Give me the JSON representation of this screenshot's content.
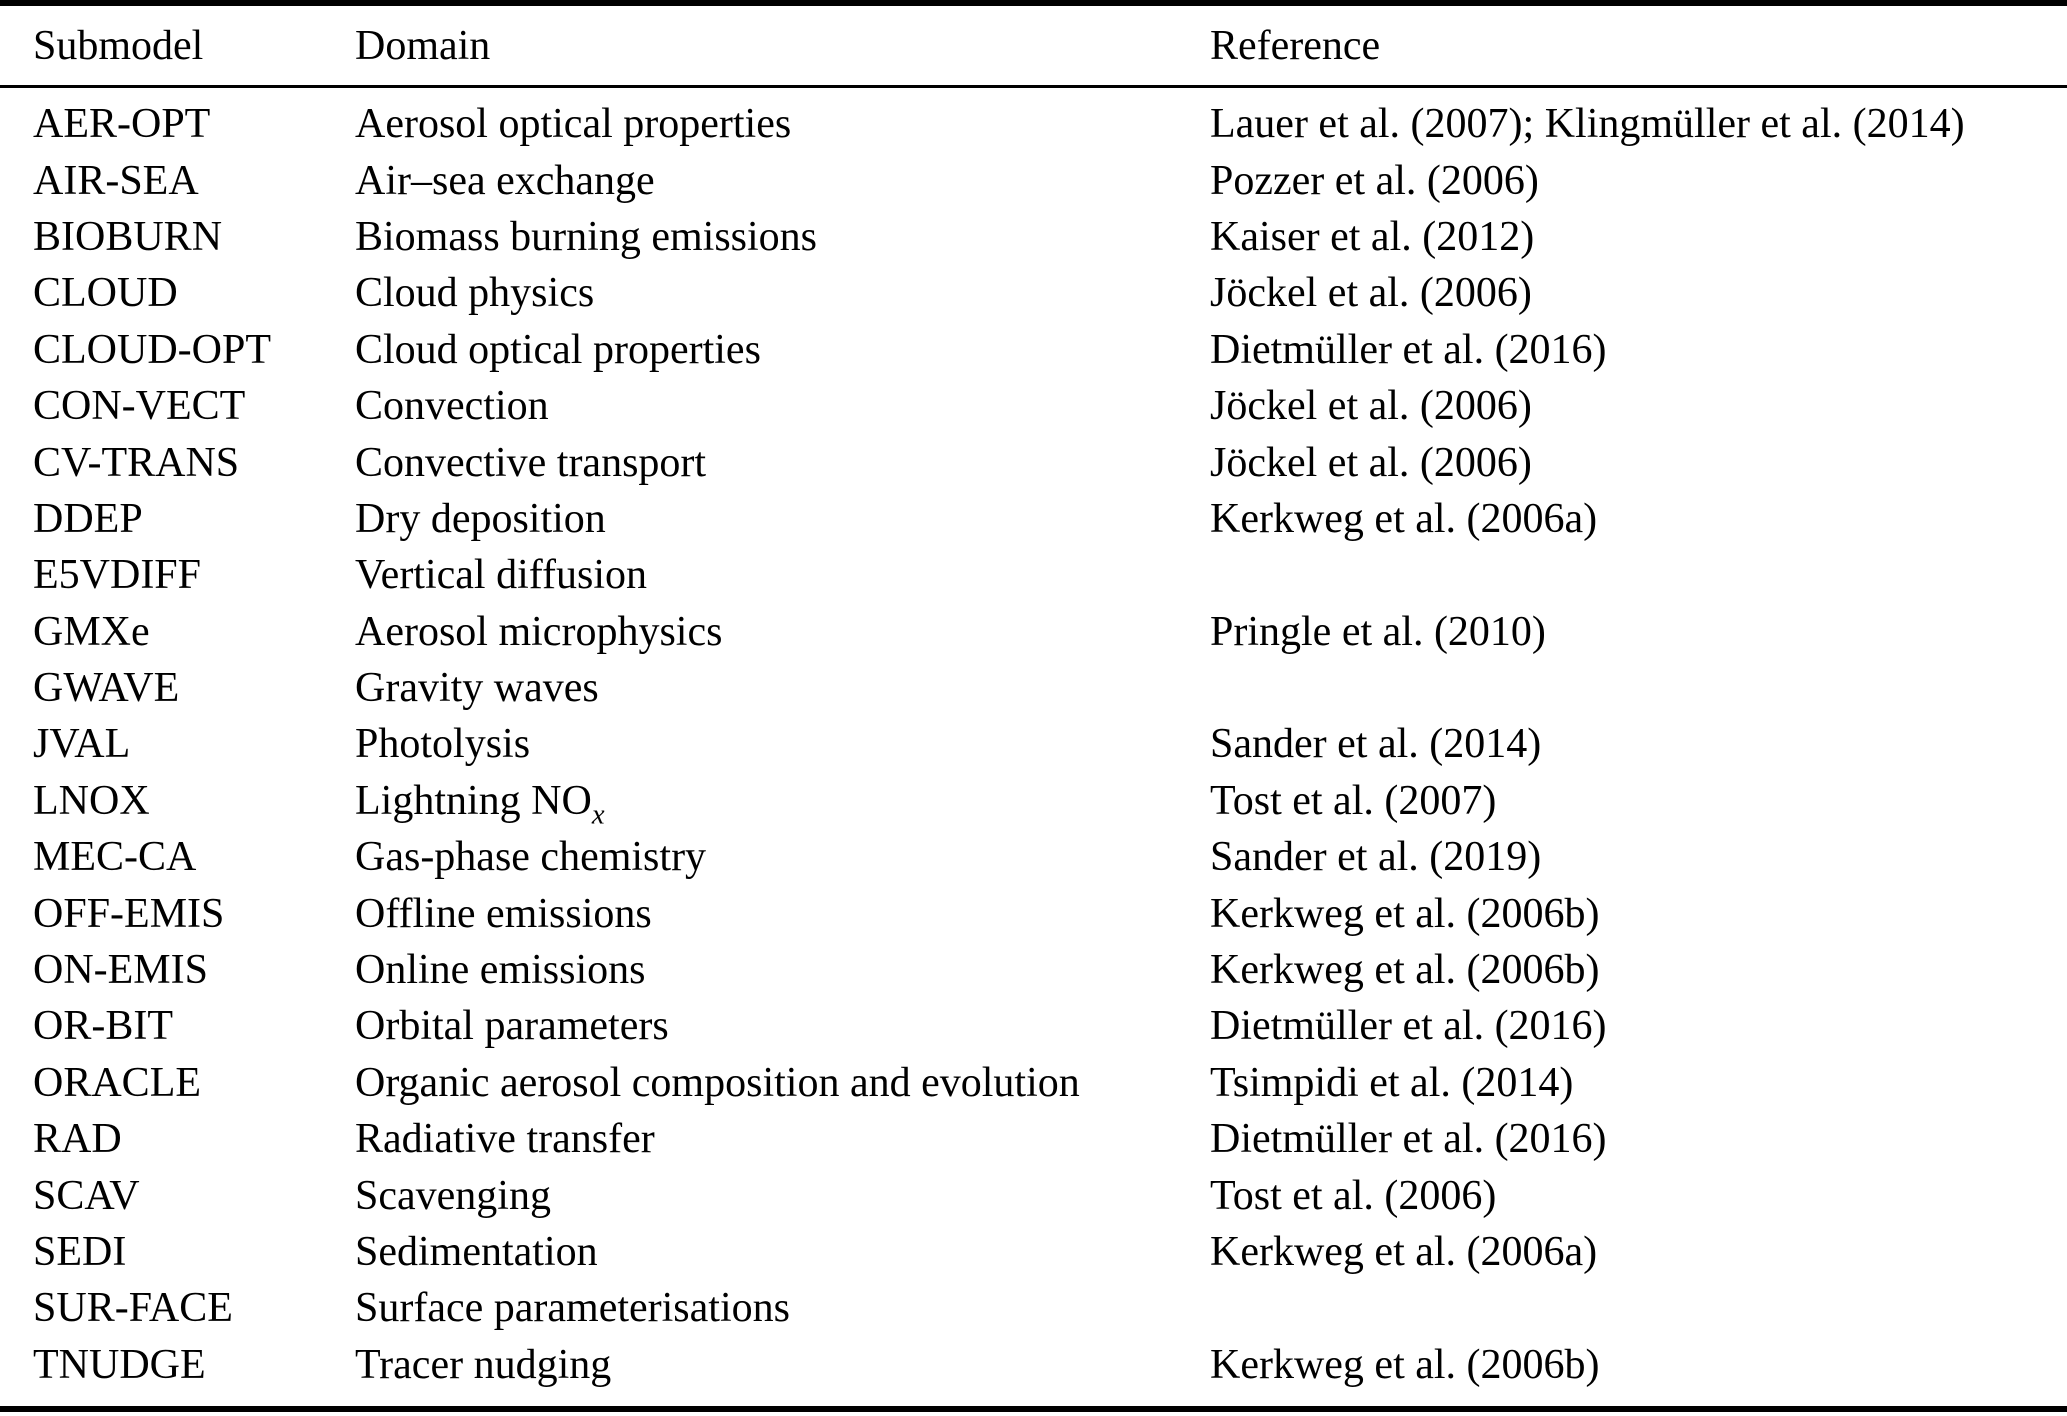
{
  "table": {
    "columns": [
      "Submodel",
      "Domain",
      "Reference"
    ],
    "rows": [
      {
        "submodel": "AER-OPT",
        "domain": "Aerosol optical properties",
        "reference": "Lauer et al. (2007); Klingmüller et al. (2014)"
      },
      {
        "submodel": "AIR-SEA",
        "domain": "Air–sea exchange",
        "reference": "Pozzer et al. (2006)"
      },
      {
        "submodel": "BIOBURN",
        "domain": "Biomass burning emissions",
        "reference": "Kaiser et al. (2012)"
      },
      {
        "submodel": "CLOUD",
        "domain": "Cloud physics",
        "reference": "Jöckel et al. (2006)"
      },
      {
        "submodel": "CLOUD-OPT",
        "domain": "Cloud optical properties",
        "reference": "Dietmüller et al. (2016)"
      },
      {
        "submodel": "CON-VECT",
        "domain": "Convection",
        "reference": "Jöckel et al. (2006)"
      },
      {
        "submodel": "CV-TRANS",
        "domain": "Convective transport",
        "reference": "Jöckel et al. (2006)"
      },
      {
        "submodel": "DDEP",
        "domain": "Dry deposition",
        "reference": "Kerkweg et al. (2006a)"
      },
      {
        "submodel": "E5VDIFF",
        "domain": "Vertical diffusion",
        "reference": ""
      },
      {
        "submodel": "GMXe",
        "domain": "Aerosol microphysics",
        "reference": "Pringle et al. (2010)"
      },
      {
        "submodel": "GWAVE",
        "domain": "Gravity waves",
        "reference": ""
      },
      {
        "submodel": "JVAL",
        "domain": "Photolysis",
        "reference": "Sander et al. (2014)"
      },
      {
        "submodel": "LNOX",
        "domain": "Lightning NO_x",
        "reference": "Tost et al. (2007)"
      },
      {
        "submodel": "MEC-CA",
        "domain": "Gas-phase chemistry",
        "reference": "Sander et al. (2019)"
      },
      {
        "submodel": "OFF-EMIS",
        "domain": "Offline emissions",
        "reference": "Kerkweg et al. (2006b)"
      },
      {
        "submodel": "ON-EMIS",
        "domain": "Online emissions",
        "reference": "Kerkweg et al. (2006b)"
      },
      {
        "submodel": "OR-BIT",
        "domain": "Orbital parameters",
        "reference": "Dietmüller et al. (2016)"
      },
      {
        "submodel": "ORACLE",
        "domain": "Organic aerosol composition and evolution",
        "reference": "Tsimpidi et al. (2014)"
      },
      {
        "submodel": "RAD",
        "domain": "Radiative transfer",
        "reference": "Dietmüller et al. (2016)"
      },
      {
        "submodel": "SCAV",
        "domain": "Scavenging",
        "reference": "Tost et al. (2006)"
      },
      {
        "submodel": "SEDI",
        "domain": "Sedimentation",
        "reference": "Kerkweg et al. (2006a)"
      },
      {
        "submodel": "SUR-FACE",
        "domain": "Surface parameterisations",
        "reference": ""
      },
      {
        "submodel": "TNUDGE",
        "domain": "Tracer nudging",
        "reference": "Kerkweg et al. (2006b)"
      }
    ]
  },
  "colors": {
    "text": "#000000",
    "background": "#ffffff",
    "rule": "#000000"
  }
}
